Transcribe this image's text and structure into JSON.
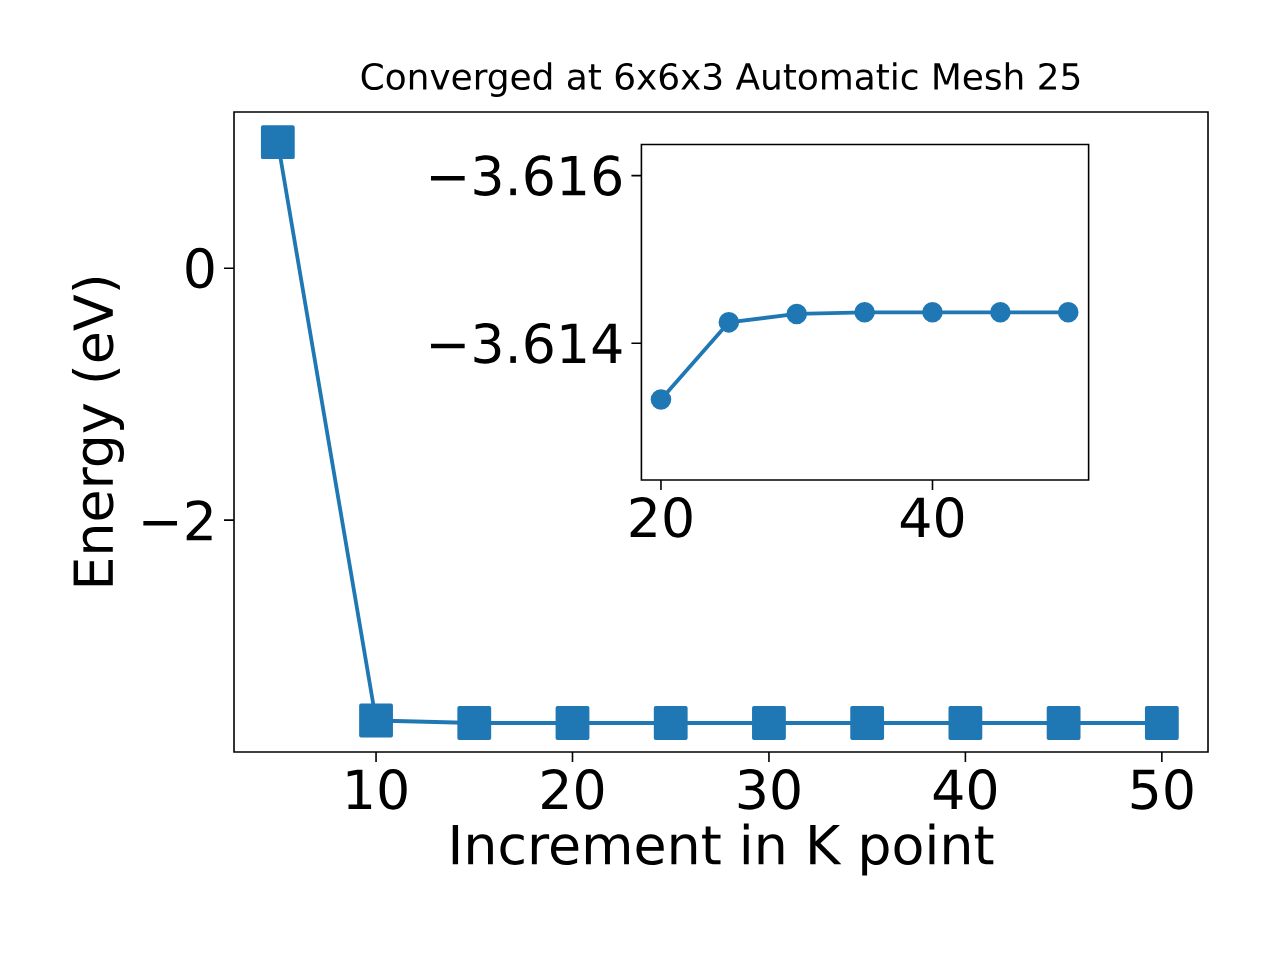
{
  "chart_data": [
    {
      "type": "line",
      "title": "Converged at 6x6x3 Automatic Mesh 25",
      "xlabel": "Increment in K point",
      "ylabel": "Energy (eV)",
      "marker": "square",
      "line_style": "solid",
      "x": [
        5,
        10,
        15,
        20,
        25,
        30,
        35,
        40,
        45,
        50
      ],
      "series": [
        {
          "color": "#1f77b4",
          "values": [
            1.0,
            -3.59,
            -3.61,
            -3.61,
            -3.61,
            -3.61,
            -3.61,
            -3.61,
            -3.61,
            -3.61
          ]
        }
      ],
      "xlim": [
        2.77,
        52.35
      ],
      "ylim": [
        -3.84,
        1.24
      ],
      "xticks": [
        10,
        20,
        30,
        40,
        50
      ],
      "yticks": [
        {
          "value": -2,
          "label": "−2"
        },
        0
      ]
    },
    {
      "type": "line",
      "marker": "circle",
      "line_style": "solid",
      "x": [
        20,
        25,
        30,
        35,
        40,
        45,
        50
      ],
      "series": [
        {
          "color": "#1f77b4",
          "values": [
            -3.61333,
            -3.61425,
            -3.61435,
            -3.61437,
            -3.61437,
            -3.61437,
            -3.61437
          ]
        }
      ],
      "xlim": [
        18.56,
        51.5
      ],
      "ylim": [
        -3.61237,
        -3.61637
      ],
      "xticks": [
        20,
        40
      ],
      "yticks": [
        {
          "value": -3.616,
          "label": "−3.616"
        },
        {
          "value": -3.614,
          "label": "−3.614"
        }
      ]
    }
  ]
}
